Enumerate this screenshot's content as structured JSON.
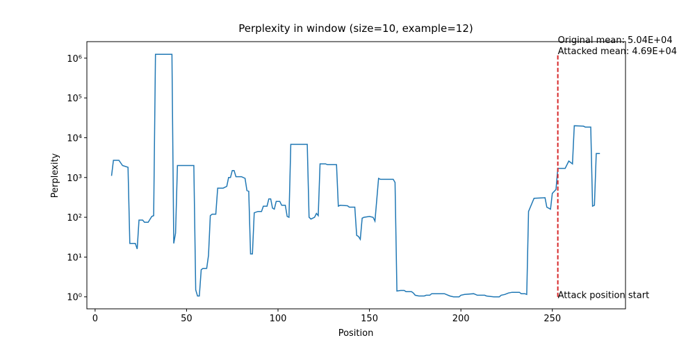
{
  "chart_data": {
    "type": "line",
    "title": "Perplexity in window (size=10, example=12)",
    "x_label": "Position",
    "y_label": "Perplexity",
    "log_y": true,
    "color": "#1f77b4",
    "x": [
      9,
      10,
      13,
      15,
      18,
      19,
      22,
      23,
      24,
      26,
      27,
      29,
      31,
      32,
      33,
      42,
      43,
      44,
      45,
      54,
      55,
      56,
      57,
      58,
      59,
      61,
      62,
      63,
      64,
      66,
      67,
      70,
      72,
      73,
      74,
      75,
      76,
      77,
      80,
      82,
      83,
      84,
      85,
      86,
      87,
      89,
      91,
      92,
      94,
      95,
      96,
      97,
      98,
      99,
      101,
      102,
      104,
      105,
      106,
      107,
      116,
      117,
      118,
      120,
      121,
      122,
      123,
      126,
      127,
      132,
      133,
      134,
      138,
      139,
      142,
      143,
      144,
      145,
      146,
      147,
      150,
      152,
      153,
      155,
      156,
      163,
      164,
      165,
      167,
      169,
      170,
      173,
      174,
      175,
      177,
      180,
      181,
      183,
      184,
      191,
      192,
      194,
      196,
      199,
      200,
      202,
      207,
      209,
      213,
      214,
      218,
      221,
      222,
      224,
      226,
      228,
      232,
      233,
      235,
      236,
      237,
      240,
      246,
      247,
      249,
      250,
      252,
      253,
      257,
      259,
      261,
      262,
      267,
      268,
      271,
      272,
      273,
      274,
      276
    ],
    "values": [
      1100,
      2700,
      2700,
      2000,
      1800,
      22,
      22,
      16,
      85,
      85,
      75,
      75,
      105,
      110,
      1250000,
      1250000,
      22,
      40,
      2000,
      2000,
      1.5,
      1.05,
      1.05,
      4.8,
      5.2,
      5.2,
      11,
      110,
      120,
      120,
      540,
      540,
      600,
      1000,
      1000,
      1500,
      1500,
      1050,
      1050,
      950,
      470,
      450,
      12,
      12,
      130,
      140,
      140,
      190,
      190,
      290,
      290,
      170,
      160,
      250,
      250,
      200,
      200,
      105,
      100,
      6800,
      6800,
      100,
      90,
      100,
      125,
      110,
      2200,
      2200,
      2100,
      2100,
      190,
      200,
      195,
      180,
      180,
      35,
      33,
      28,
      95,
      100,
      105,
      100,
      80,
      950,
      900,
      900,
      750,
      1.4,
      1.45,
      1.45,
      1.35,
      1.35,
      1.25,
      1.1,
      1.05,
      1.05,
      1.1,
      1.1,
      1.2,
      1.2,
      1.15,
      1.05,
      1.0,
      1.0,
      1.1,
      1.15,
      1.2,
      1.1,
      1.1,
      1.05,
      1.0,
      1.0,
      1.1,
      1.15,
      1.25,
      1.3,
      1.3,
      1.2,
      1.2,
      1.15,
      140,
      300,
      310,
      180,
      160,
      400,
      500,
      1700,
      1700,
      2600,
      2200,
      20000,
      19500,
      18500,
      18500,
      190,
      200,
      4000,
      4000
    ],
    "xlim": [
      -4.5,
      290
    ],
    "ylim": [
      0.5,
      2600000
    ],
    "xticks": [
      0,
      50,
      100,
      150,
      200,
      250
    ],
    "yticks": [
      {
        "value": 1,
        "label": "10⁰"
      },
      {
        "value": 10,
        "label": "10¹"
      },
      {
        "value": 100,
        "label": "10²"
      },
      {
        "value": 1000,
        "label": "10³"
      },
      {
        "value": 10000,
        "label": "10⁴"
      },
      {
        "value": 100000,
        "label": "10⁵"
      },
      {
        "value": 1000000,
        "label": "10⁶"
      }
    ],
    "attack_line": {
      "x": 253,
      "y": [
        1,
        1250000
      ],
      "color": "#d62728"
    },
    "attack_label": "Attack position start",
    "annotations": [
      "Original mean: 5.04E+04",
      "Attacked mean: 4.69E+04"
    ]
  }
}
